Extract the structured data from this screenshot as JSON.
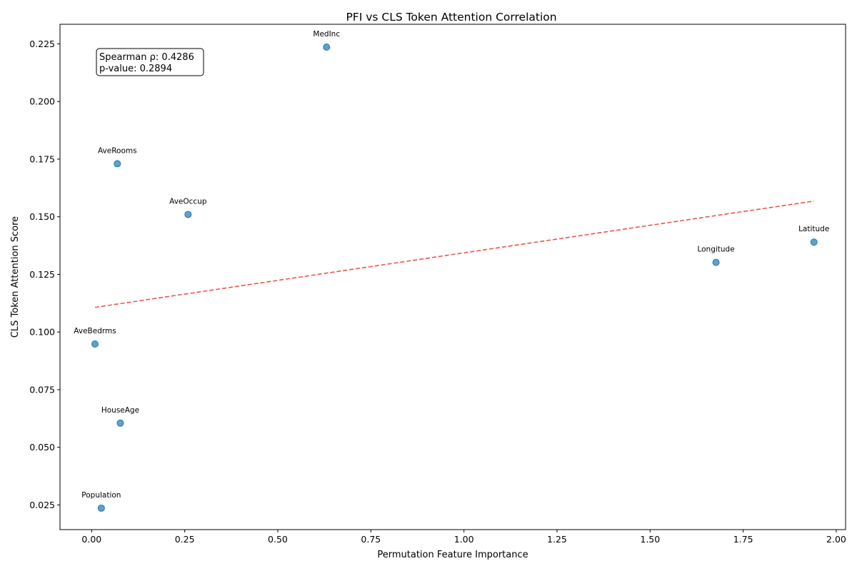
{
  "chart_data": {
    "type": "scatter",
    "title": "PFI vs CLS Token Attention Correlation",
    "xlabel": "Permutation Feature Importance",
    "ylabel": "CLS Token Attention Score",
    "xlim": [
      -0.085,
      2.025
    ],
    "ylim": [
      0.0143,
      0.2335
    ],
    "x_ticks": [
      0.0,
      0.25,
      0.5,
      0.75,
      1.0,
      1.25,
      1.5,
      1.75,
      2.0
    ],
    "x_tick_labels": [
      "0.00",
      "0.25",
      "0.50",
      "0.75",
      "1.00",
      "1.25",
      "1.50",
      "1.75",
      "2.00"
    ],
    "y_ticks": [
      0.025,
      0.05,
      0.075,
      0.1,
      0.125,
      0.15,
      0.175,
      0.2,
      0.225
    ],
    "y_tick_labels": [
      "0.025",
      "0.050",
      "0.075",
      "0.100",
      "0.125",
      "0.150",
      "0.175",
      "0.200",
      "0.225"
    ],
    "grid": false,
    "points": [
      {
        "label": "MedInc",
        "x": 0.631,
        "y": 0.2236
      },
      {
        "label": "AveRooms",
        "x": 0.069,
        "y": 0.173
      },
      {
        "label": "AveOccup",
        "x": 0.259,
        "y": 0.151
      },
      {
        "label": "Latitude",
        "x": 1.94,
        "y": 0.139
      },
      {
        "label": "Longitude",
        "x": 1.677,
        "y": 0.1302
      },
      {
        "label": "AveBedrms",
        "x": 0.009,
        "y": 0.0948
      },
      {
        "label": "HouseAge",
        "x": 0.077,
        "y": 0.0605
      },
      {
        "label": "Population",
        "x": 0.026,
        "y": 0.0236
      }
    ],
    "point_color": "#1f77b4",
    "trend_line": {
      "x": [
        0.009,
        1.94
      ],
      "y": [
        0.1107,
        0.1568
      ],
      "color": "#e8443a",
      "style": "dashed"
    },
    "annotation": {
      "line1": "Spearman ρ: 0.4286",
      "line2": "p-value: 0.2894",
      "position": "top-left"
    }
  }
}
